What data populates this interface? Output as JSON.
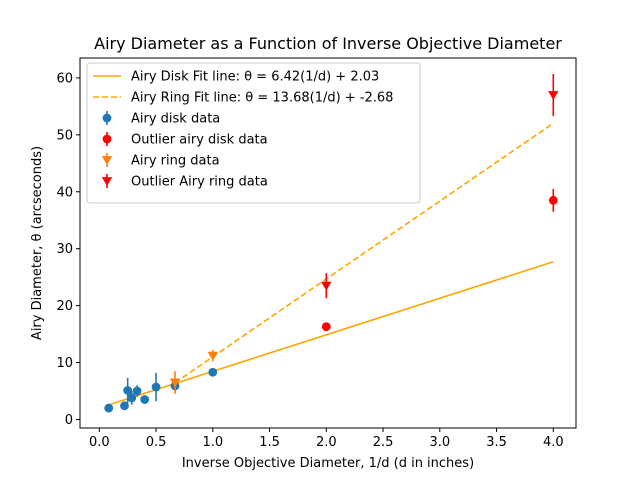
{
  "chart_data": {
    "type": "scatter",
    "title": "Airy Diameter as a Function of Inverse Objective Diameter",
    "xlabel": "Inverse Objective Diameter, 1/d (d in inches)",
    "ylabel": "Airy Diameter, θ (arcseconds)",
    "xlim": [
      -0.17,
      4.2
    ],
    "ylim": [
      -1.5,
      63.5
    ],
    "xticks": [
      0.0,
      0.5,
      1.0,
      1.5,
      2.0,
      2.5,
      3.0,
      3.5,
      4.0
    ],
    "xtick_labels": [
      "0.0",
      "0.5",
      "1.0",
      "1.5",
      "2.0",
      "2.5",
      "3.0",
      "3.5",
      "4.0"
    ],
    "yticks": [
      0,
      10,
      20,
      30,
      40,
      50,
      60
    ],
    "ytick_labels": [
      "0",
      "10",
      "20",
      "30",
      "40",
      "50",
      "60"
    ],
    "grid": false,
    "legend_position": "top-left",
    "lines": [
      {
        "name": "Airy Disk Fit line: θ = 6.42(1/d) + 2.03",
        "slope": 6.42,
        "intercept": 2.03,
        "x_range": [
          0.0833,
          4.0
        ],
        "style": "solid",
        "color": "#ffa500"
      },
      {
        "name": "Airy Ring Fit line: θ = 13.68(1/d) + -2.68",
        "slope": 13.68,
        "intercept": -2.68,
        "x_range": [
          0.667,
          4.0
        ],
        "style": "dashed",
        "color": "#ffa500"
      }
    ],
    "series": [
      {
        "name": "Airy disk data",
        "marker": "circle",
        "color": "#1f77b4",
        "points": [
          {
            "x": 0.083,
            "y": 2.0,
            "err": 0.3
          },
          {
            "x": 0.222,
            "y": 2.4,
            "err": 0.3
          },
          {
            "x": 0.25,
            "y": 5.1,
            "err": 2.2
          },
          {
            "x": 0.286,
            "y": 3.8,
            "err": 1.2
          },
          {
            "x": 0.333,
            "y": 5.0,
            "err": 1.0
          },
          {
            "x": 0.4,
            "y": 3.5,
            "err": 0.4
          },
          {
            "x": 0.5,
            "y": 5.7,
            "err": 2.5
          },
          {
            "x": 0.667,
            "y": 5.9,
            "err": 1.0
          },
          {
            "x": 1.0,
            "y": 8.3,
            "err": 0.4
          }
        ]
      },
      {
        "name": "Outlier airy disk data",
        "marker": "circle",
        "color": "#ff0000",
        "points": [
          {
            "x": 2.0,
            "y": 16.3,
            "err": 0.6
          },
          {
            "x": 4.0,
            "y": 38.5,
            "err": 2.0
          }
        ]
      },
      {
        "name": "Airy ring data",
        "marker": "triangle-down",
        "color": "#ff7f0e",
        "points": [
          {
            "x": 0.667,
            "y": 6.5,
            "err": 2.0
          },
          {
            "x": 1.0,
            "y": 11.2,
            "err": 1.0
          }
        ]
      },
      {
        "name": "Outlier Airy ring data",
        "marker": "triangle-down",
        "color": "#ff0000",
        "points": [
          {
            "x": 2.0,
            "y": 23.5,
            "err": 2.2
          },
          {
            "x": 4.0,
            "y": 57.0,
            "err": 3.7
          }
        ]
      }
    ]
  }
}
